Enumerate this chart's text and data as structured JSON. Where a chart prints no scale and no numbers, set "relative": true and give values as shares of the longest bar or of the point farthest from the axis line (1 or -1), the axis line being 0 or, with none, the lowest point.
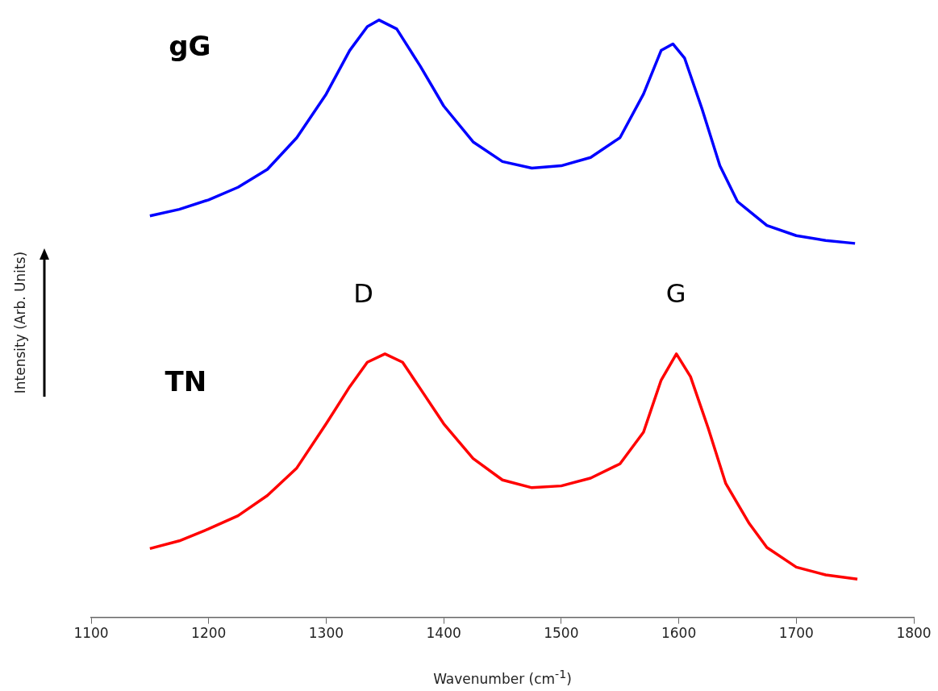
{
  "chart_data": {
    "type": "line",
    "relative": true,
    "xlabel": "Wavenumber (cm$^{-1}$)",
    "ylabel": "Intensity (Arb. Units)",
    "xlim": [
      1100,
      1800
    ],
    "xticks": [
      1100,
      1200,
      1300,
      1400,
      1500,
      1600,
      1700,
      1800
    ],
    "grid": false,
    "legend": false,
    "marker": "none",
    "line_style": "solid",
    "annotations": [
      "gG",
      "TN",
      "D",
      "G"
    ],
    "series": [
      {
        "color": "#0000ff",
        "x": [
          1150,
          1175,
          1200,
          1225,
          1250,
          1275,
          1300,
          1320,
          1335,
          1345,
          1360,
          1380,
          1400,
          1425,
          1450,
          1475,
          1500,
          1525,
          1550,
          1570,
          1585,
          1595,
          1605,
          1620,
          1635,
          1650,
          1675,
          1700,
          1725,
          1750
        ],
        "values": [
          0.672,
          0.683,
          0.699,
          0.72,
          0.75,
          0.803,
          0.876,
          0.949,
          0.989,
          1.0,
          0.985,
          0.923,
          0.856,
          0.796,
          0.763,
          0.752,
          0.756,
          0.77,
          0.803,
          0.876,
          0.949,
          0.96,
          0.936,
          0.85,
          0.756,
          0.696,
          0.656,
          0.639,
          0.631,
          0.626
        ]
      },
      {
        "color": "#ff0000",
        "x": [
          1150,
          1175,
          1200,
          1225,
          1250,
          1275,
          1300,
          1320,
          1335,
          1350,
          1365,
          1380,
          1400,
          1425,
          1450,
          1475,
          1500,
          1525,
          1550,
          1570,
          1585,
          1598,
          1610,
          1625,
          1640,
          1660,
          1675,
          1700,
          1725,
          1752
        ],
        "values": [
          0.115,
          0.128,
          0.148,
          0.17,
          0.204,
          0.25,
          0.324,
          0.386,
          0.427,
          0.441,
          0.427,
          0.383,
          0.324,
          0.266,
          0.23,
          0.217,
          0.22,
          0.233,
          0.257,
          0.31,
          0.397,
          0.441,
          0.403,
          0.317,
          0.224,
          0.157,
          0.117,
          0.084,
          0.071,
          0.064
        ]
      }
    ]
  }
}
